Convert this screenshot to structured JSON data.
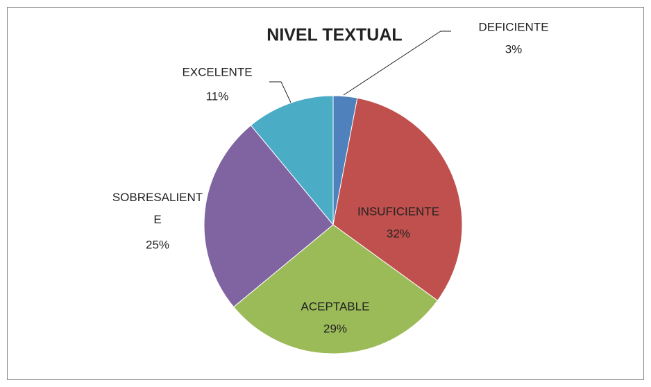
{
  "chart_data": {
    "type": "pie",
    "title": "NIVEL TEXTUAL",
    "categories": [
      "DEFICIENTE",
      "INSUFICIENTE",
      "ACEPTABLE",
      "SOBRESALIENTE",
      "EXCELENTE"
    ],
    "values": [
      3,
      32,
      29,
      25,
      11
    ],
    "value_labels": [
      "3%",
      "32%",
      "29%",
      "25%",
      "11%"
    ],
    "colors": [
      "#4f81bd",
      "#c0504d",
      "#9bbb59",
      "#8064a2",
      "#4bacc6"
    ]
  }
}
